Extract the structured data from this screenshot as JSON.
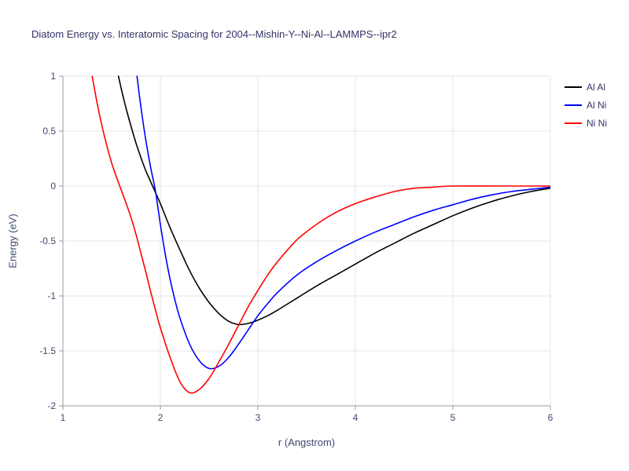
{
  "chart_data": {
    "type": "line",
    "title": "Diatom Energy vs. Interatomic Spacing for 2004--Mishin-Y--Ni-Al--LAMMPS--ipr2",
    "xlabel": "r (Angstrom)",
    "ylabel": "Energy (eV)",
    "xlim": [
      1,
      6
    ],
    "ylim": [
      -2,
      1
    ],
    "xticks": [
      1,
      2,
      3,
      4,
      5,
      6
    ],
    "yticks": [
      -2,
      -1.5,
      -1,
      -0.5,
      0,
      0.5,
      1
    ],
    "grid": true,
    "legend_position": "top-right-outside",
    "style": {
      "grid_color": "#e6e6e6",
      "axis_color": "#999999",
      "tick_color": "#999999",
      "tick_label_color": "#3d4a74",
      "title_color": "#333366",
      "background": "#ffffff",
      "line_width": 1.6
    },
    "series": [
      {
        "name": "Al Al",
        "color": "#000000",
        "x": [
          1.57,
          1.6,
          1.65,
          1.7,
          1.75,
          1.8,
          1.85,
          1.9,
          1.95,
          2.0,
          2.1,
          2.2,
          2.3,
          2.4,
          2.5,
          2.6,
          2.7,
          2.8,
          2.9,
          3.0,
          3.1,
          3.2,
          3.4,
          3.6,
          3.8,
          4.0,
          4.2,
          4.4,
          4.6,
          4.8,
          5.0,
          5.2,
          5.4,
          5.6,
          5.8,
          6.0
        ],
        "y": [
          1.0,
          0.88,
          0.7,
          0.54,
          0.39,
          0.26,
          0.14,
          0.04,
          -0.06,
          -0.16,
          -0.38,
          -0.58,
          -0.77,
          -0.93,
          -1.06,
          -1.16,
          -1.23,
          -1.26,
          -1.25,
          -1.22,
          -1.18,
          -1.13,
          -1.02,
          -0.91,
          -0.81,
          -0.71,
          -0.61,
          -0.52,
          -0.43,
          -0.35,
          -0.27,
          -0.2,
          -0.14,
          -0.09,
          -0.05,
          -0.02
        ]
      },
      {
        "name": "Al Ni",
        "color": "#0000ff",
        "x": [
          1.76,
          1.8,
          1.85,
          1.9,
          1.95,
          2.0,
          2.05,
          2.1,
          2.15,
          2.2,
          2.3,
          2.4,
          2.5,
          2.6,
          2.7,
          2.8,
          2.9,
          3.0,
          3.1,
          3.2,
          3.4,
          3.6,
          3.8,
          4.0,
          4.2,
          4.4,
          4.6,
          4.8,
          5.0,
          5.2,
          5.4,
          5.6,
          5.8,
          6.0
        ],
        "y": [
          1.0,
          0.72,
          0.42,
          0.17,
          -0.05,
          -0.35,
          -0.62,
          -0.85,
          -1.04,
          -1.2,
          -1.44,
          -1.59,
          -1.66,
          -1.64,
          -1.56,
          -1.44,
          -1.31,
          -1.18,
          -1.07,
          -0.97,
          -0.81,
          -0.69,
          -0.59,
          -0.5,
          -0.42,
          -0.35,
          -0.28,
          -0.22,
          -0.17,
          -0.12,
          -0.08,
          -0.05,
          -0.03,
          -0.01
        ]
      },
      {
        "name": "Ni Ni",
        "color": "#ff0000",
        "x": [
          1.3,
          1.35,
          1.4,
          1.45,
          1.5,
          1.55,
          1.6,
          1.65,
          1.7,
          1.75,
          1.8,
          1.85,
          1.9,
          1.95,
          2.0,
          2.1,
          2.2,
          2.3,
          2.4,
          2.5,
          2.6,
          2.7,
          2.8,
          2.9,
          3.0,
          3.1,
          3.2,
          3.4,
          3.6,
          3.8,
          4.0,
          4.2,
          4.4,
          4.6,
          4.8,
          5.0,
          5.5,
          6.0
        ],
        "y": [
          1.0,
          0.76,
          0.55,
          0.37,
          0.21,
          0.08,
          -0.04,
          -0.16,
          -0.29,
          -0.44,
          -0.61,
          -0.78,
          -0.96,
          -1.13,
          -1.29,
          -1.56,
          -1.78,
          -1.88,
          -1.85,
          -1.75,
          -1.6,
          -1.44,
          -1.27,
          -1.1,
          -0.95,
          -0.81,
          -0.69,
          -0.49,
          -0.35,
          -0.24,
          -0.16,
          -0.1,
          -0.05,
          -0.02,
          -0.01,
          0.0,
          0.0,
          0.0
        ]
      }
    ]
  }
}
